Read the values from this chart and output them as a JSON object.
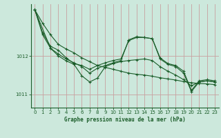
{
  "background_color": "#cce8dc",
  "line_color": "#1a5c28",
  "marker_color": "#1a5c28",
  "xlabel": "Graphe pression niveau de la mer (hPa)",
  "xlabel_color": "#1a5c28",
  "tick_color": "#1a5c28",
  "grid_color_v": "#c8a0a0",
  "grid_color_h": "#c8a0a0",
  "xlim": [
    -0.5,
    23.5
  ],
  "ylim": [
    1010.65,
    1013.35
  ],
  "yticks": [
    1011,
    1012
  ],
  "xticks": [
    0,
    1,
    2,
    3,
    4,
    5,
    6,
    7,
    8,
    9,
    10,
    11,
    12,
    13,
    14,
    15,
    16,
    17,
    18,
    19,
    20,
    21,
    22,
    23
  ],
  "series": [
    {
      "x": [
        0,
        1,
        2,
        3,
        4,
        5,
        6,
        7,
        8,
        9,
        10,
        11,
        12,
        13,
        14,
        15,
        16,
        17,
        18,
        19,
        20,
        21,
        22,
        23
      ],
      "y": [
        1013.2,
        1012.85,
        1012.55,
        1012.3,
        1012.18,
        1012.08,
        1011.95,
        1011.85,
        1011.75,
        1011.7,
        1011.65,
        1011.6,
        1011.55,
        1011.52,
        1011.5,
        1011.47,
        1011.43,
        1011.4,
        1011.37,
        1011.33,
        1011.3,
        1011.28,
        1011.27,
        1011.25
      ]
    },
    {
      "x": [
        0,
        1,
        2,
        3,
        4,
        5,
        6,
        7,
        8,
        9,
        10,
        11,
        12,
        13,
        14,
        15,
        16,
        17,
        18,
        19,
        20,
        21,
        22,
        23
      ],
      "y": [
        1013.2,
        1012.6,
        1012.25,
        1012.15,
        1011.95,
        1011.8,
        1011.75,
        1011.65,
        1011.75,
        1011.82,
        1011.88,
        1011.92,
        1012.4,
        1012.48,
        1012.48,
        1012.45,
        1011.95,
        1011.8,
        1011.75,
        1011.6,
        1011.1,
        1011.35,
        1011.38,
        1011.35
      ]
    },
    {
      "x": [
        0,
        1,
        2,
        3,
        4,
        5,
        6,
        7,
        8,
        9,
        10,
        11,
        12,
        13,
        14,
        15,
        16,
        17,
        18,
        19,
        20,
        21,
        22,
        23
      ],
      "y": [
        1013.2,
        1012.55,
        1012.2,
        1012.05,
        1011.92,
        1011.82,
        1011.72,
        1011.55,
        1011.68,
        1011.75,
        1011.82,
        1011.88,
        1012.42,
        1012.5,
        1012.48,
        1012.45,
        1011.92,
        1011.78,
        1011.72,
        1011.55,
        1011.07,
        1011.32,
        1011.35,
        1011.32
      ]
    },
    {
      "x": [
        0,
        2,
        3,
        4,
        5,
        6,
        7,
        8,
        9,
        10,
        11,
        12,
        13,
        14,
        15,
        16,
        17,
        18,
        19,
        20,
        21,
        22,
        23
      ],
      "y": [
        1013.2,
        1012.2,
        1012.0,
        1011.87,
        1011.78,
        1011.48,
        1011.32,
        1011.42,
        1011.72,
        1011.8,
        1011.85,
        1011.88,
        1011.9,
        1011.92,
        1011.88,
        1011.72,
        1011.6,
        1011.5,
        1011.38,
        1011.22,
        1011.32,
        1011.35,
        1011.32
      ]
    }
  ]
}
